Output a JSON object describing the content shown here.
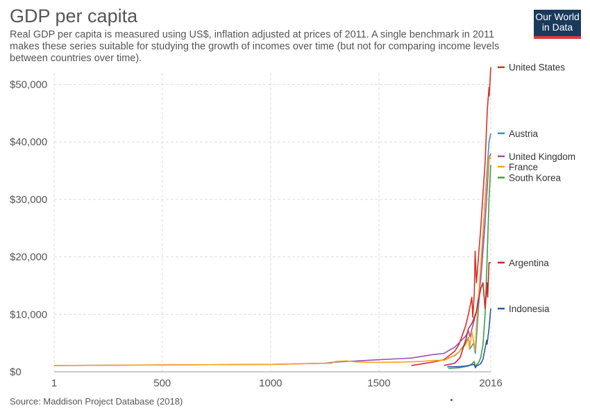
{
  "title": "GDP per capita",
  "subtitle": "Real GDP per capita is measured using US$, inflation adjusted at prices of 2011. A single benchmark in 2011 makes these series suitable for studying the growth of incomes over time (but not for comparing income levels between countries over time).",
  "logo": {
    "line1": "Our World",
    "line2": "in Data"
  },
  "source": "Source: Maddison Project Database (2018)",
  "chart_data": {
    "type": "line",
    "title": "GDP per capita",
    "xlim": [
      1,
      2016
    ],
    "ylim": [
      0,
      52000
    ],
    "x_ticks": [
      {
        "value": 1,
        "label": "1"
      },
      {
        "value": 500,
        "label": "500"
      },
      {
        "value": 1000,
        "label": "1000"
      },
      {
        "value": 1500,
        "label": "1500"
      },
      {
        "value": 2016,
        "label": "2016"
      }
    ],
    "y_ticks": [
      {
        "value": 0,
        "label": "$0"
      },
      {
        "value": 10000,
        "label": "$10,000"
      },
      {
        "value": 20000,
        "label": "$20,000"
      },
      {
        "value": 30000,
        "label": "$30,000"
      },
      {
        "value": 40000,
        "label": "$40,000"
      },
      {
        "value": 50000,
        "label": "$50,000"
      }
    ],
    "grid": true,
    "legend_position": "right",
    "series": [
      {
        "name": "United States",
        "color": "#d73027",
        "x": [
          1650,
          1700,
          1750,
          1800,
          1820,
          1850,
          1870,
          1900,
          1913,
          1929,
          1933,
          1940,
          1944,
          1950,
          1970,
          1990,
          2000,
          2008,
          2009,
          2016
        ],
        "y": [
          1100,
          1400,
          1700,
          2100,
          2700,
          3600,
          4800,
          8000,
          10000,
          13000,
          9500,
          13500,
          21000,
          15500,
          25000,
          36500,
          45500,
          49500,
          48000,
          53000
        ]
      },
      {
        "name": "Austria",
        "color": "#2a9bb5",
        "x": [
          1820,
          1850,
          1870,
          1900,
          1913,
          1920,
          1937,
          1945,
          1950,
          1970,
          1990,
          2008,
          2016
        ],
        "y": [
          2400,
          2800,
          3500,
          5000,
          6000,
          4000,
          5000,
          3200,
          5800,
          17000,
          30000,
          40000,
          41500
        ]
      },
      {
        "name": "United Kingdom",
        "color": "#9b4fb5",
        "x": [
          1,
          1000,
          1252,
          1300,
          1400,
          1500,
          1600,
          1650,
          1700,
          1750,
          1800,
          1850,
          1900,
          1913,
          1920,
          1950,
          1970,
          1990,
          2008,
          2016
        ],
        "y": [
          1100,
          1300,
          1500,
          1700,
          1900,
          2100,
          2300,
          2400,
          2700,
          3000,
          3200,
          4300,
          6200,
          7100,
          6100,
          10500,
          16000,
          26000,
          37000,
          38000
        ]
      },
      {
        "name": "France",
        "color": "#f7a21b",
        "x": [
          1,
          500,
          1000,
          1280,
          1300,
          1350,
          1400,
          1500,
          1600,
          1700,
          1750,
          1800,
          1820,
          1850,
          1870,
          1900,
          1913,
          1918,
          1929,
          1944,
          1950,
          1970,
          1990,
          2008,
          2016
        ],
        "y": [
          1100,
          1200,
          1300,
          1500,
          1800,
          1900,
          1700,
          1650,
          1700,
          1800,
          2000,
          2000,
          2300,
          2900,
          3500,
          4700,
          5800,
          3900,
          7000,
          3800,
          8000,
          18500,
          30000,
          37500,
          37000
        ]
      },
      {
        "name": "South Korea",
        "color": "#3a9f3f",
        "x": [
          1820,
          1870,
          1911,
          1930,
          1940,
          1945,
          1950,
          1960,
          1970,
          1980,
          1990,
          2000,
          2008,
          2016
        ],
        "y": [
          600,
          700,
          1000,
          1400,
          1800,
          900,
          1200,
          1600,
          2500,
          4700,
          10000,
          20500,
          30000,
          36000
        ]
      },
      {
        "name": "Argentina",
        "color": "#c62828",
        "x": [
          1800,
          1850,
          1875,
          1900,
          1913,
          1930,
          1950,
          1970,
          1980,
          1990,
          2000,
          2002,
          2008,
          2016
        ],
        "y": [
          1100,
          1500,
          2500,
          5500,
          7500,
          8500,
          10500,
          14500,
          15500,
          11000,
          15500,
          13000,
          19000,
          19000
        ]
      },
      {
        "name": "Indonesia",
        "color": "#2b56a8",
        "x": [
          1815,
          1870,
          1900,
          1940,
          1945,
          1950,
          1970,
          1980,
          1997,
          1999,
          2008,
          2016
        ],
        "y": [
          900,
          900,
          1000,
          1300,
          700,
          1000,
          1400,
          2200,
          5500,
          4800,
          7500,
          11000
        ]
      }
    ],
    "legend": [
      {
        "name": "United States",
        "color": "#d73027",
        "y": 53000
      },
      {
        "name": "Austria",
        "color": "#2a9bb5",
        "y": 41500
      },
      {
        "name": "United Kingdom",
        "color": "#9b4fb5",
        "y": 37500
      },
      {
        "name": "France",
        "color": "#f7a21b",
        "y": 35700
      },
      {
        "name": "South Korea",
        "color": "#3a9f3f",
        "y": 33800
      },
      {
        "name": "Argentina",
        "color": "#c62828",
        "y": 19000
      },
      {
        "name": "Indonesia",
        "color": "#2b56a8",
        "y": 11000
      }
    ]
  }
}
